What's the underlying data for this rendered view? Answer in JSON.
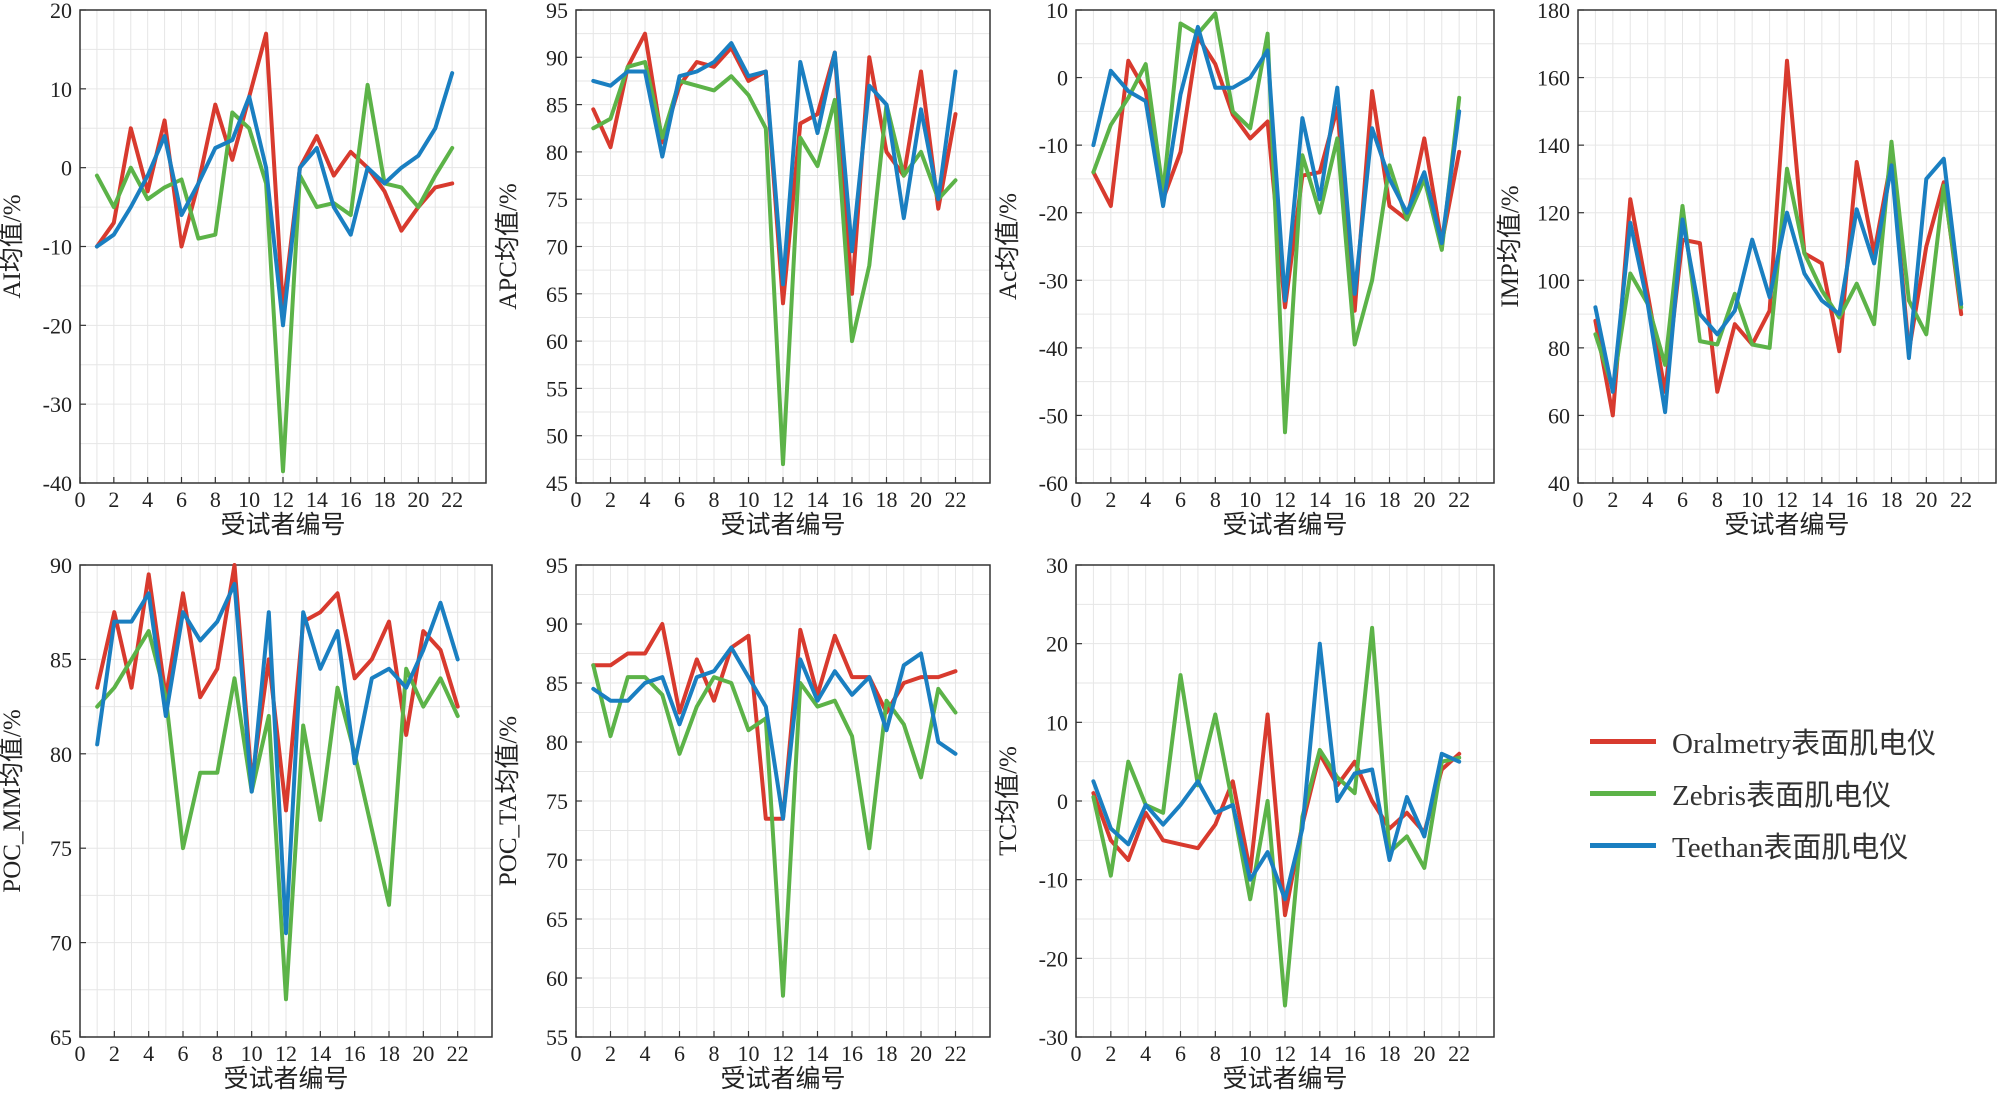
{
  "chart_data": [
    {
      "type": "line",
      "xlabel": "受试者编号",
      "ylabel": "AI均值/%",
      "x": [
        1,
        2,
        3,
        4,
        5,
        6,
        7,
        8,
        9,
        10,
        11,
        12,
        13,
        14,
        15,
        16,
        17,
        18,
        19,
        20,
        21,
        22
      ],
      "xticks": [
        0,
        2,
        4,
        6,
        8,
        10,
        12,
        14,
        16,
        18,
        20,
        22
      ],
      "xlim": [
        0,
        24
      ],
      "ylim": [
        -40,
        20
      ],
      "yticks": [
        -40,
        -30,
        -20,
        -10,
        0,
        10,
        20
      ],
      "grid": true,
      "series": [
        {
          "name": "Oralmetry表面肌电仪",
          "values": [
            -10,
            -7,
            5,
            -3,
            6,
            -10,
            -2,
            8,
            1,
            9,
            17,
            -18,
            0,
            4,
            -1,
            2,
            0,
            -3,
            -8,
            -5,
            -2.5,
            -2
          ]
        },
        {
          "name": "Zebris表面肌电仪",
          "values": [
            -1,
            -5,
            0,
            -4,
            -2.5,
            -1.5,
            -9,
            -8.5,
            7,
            5,
            -2,
            -38.5,
            -1,
            -5,
            -4.5,
            -6,
            10.5,
            -2,
            -2.5,
            -5,
            -1,
            2.5
          ]
        },
        {
          "name": "Teethan表面肌电仪",
          "values": [
            -10,
            -8.5,
            -5,
            -1,
            4,
            -6,
            -2,
            2.5,
            3.5,
            9,
            0,
            -20,
            0,
            2.5,
            -5,
            -8.5,
            0,
            -2,
            0,
            1.5,
            5,
            12
          ]
        }
      ]
    },
    {
      "type": "line",
      "xlabel": "受试者编号",
      "ylabel": "APC均值/%",
      "x": [
        1,
        2,
        3,
        4,
        5,
        6,
        7,
        8,
        9,
        10,
        11,
        12,
        13,
        14,
        15,
        16,
        17,
        18,
        19,
        20,
        21,
        22
      ],
      "xticks": [
        0,
        2,
        4,
        6,
        8,
        10,
        12,
        14,
        16,
        18,
        20,
        22
      ],
      "xlim": [
        0,
        24
      ],
      "ylim": [
        45,
        95
      ],
      "yticks": [
        45,
        50,
        55,
        60,
        65,
        70,
        75,
        80,
        85,
        90,
        95
      ],
      "grid": true,
      "series": [
        {
          "name": "Oralmetry表面肌电仪",
          "values": [
            84.5,
            80.5,
            89,
            92.5,
            81,
            87,
            89.5,
            89,
            91,
            87.5,
            88.5,
            64,
            83,
            84,
            90.5,
            65,
            90,
            80,
            77.5,
            88.5,
            74,
            84
          ]
        },
        {
          "name": "Zebris表面肌电仪",
          "values": [
            82.5,
            83.5,
            89,
            89.5,
            81.5,
            87.5,
            87,
            86.5,
            88,
            86,
            82.5,
            47,
            81.5,
            78.5,
            85.5,
            60,
            68,
            85,
            77.5,
            80,
            75,
            77
          ]
        },
        {
          "name": "Teethan表面肌电仪",
          "values": [
            87.5,
            87,
            88.5,
            88.5,
            79.5,
            88,
            88.5,
            89.5,
            91.5,
            88,
            88.5,
            66,
            89.5,
            82,
            90.5,
            69.5,
            87,
            85,
            73,
            84.5,
            75,
            88.5
          ]
        }
      ]
    },
    {
      "type": "line",
      "xlabel": "受试者编号",
      "ylabel": "Ac均值/%",
      "x": [
        1,
        2,
        3,
        4,
        5,
        6,
        7,
        8,
        9,
        10,
        11,
        12,
        13,
        14,
        15,
        16,
        17,
        18,
        19,
        20,
        21,
        22
      ],
      "xticks": [
        0,
        2,
        4,
        6,
        8,
        10,
        12,
        14,
        16,
        18,
        20,
        22
      ],
      "xlim": [
        0,
        24
      ],
      "ylim": [
        -60,
        10
      ],
      "yticks": [
        -60,
        -50,
        -40,
        -30,
        -20,
        -10,
        0,
        10
      ],
      "grid": true,
      "series": [
        {
          "name": "Oralmetry表面肌电仪",
          "values": [
            -14,
            -19,
            2.5,
            -2,
            -18,
            -11,
            6,
            2,
            -5.5,
            -9,
            -6.5,
            -34,
            -14.5,
            -14,
            -4.5,
            -34.5,
            -2,
            -19,
            -21,
            -9,
            -24.5,
            -11
          ]
        },
        {
          "name": "Zebris表面肌电仪",
          "values": [
            -14,
            -7,
            -3,
            2,
            -17,
            8,
            6.5,
            9.5,
            -5,
            -7.5,
            6.5,
            -52.5,
            -11.5,
            -20,
            -9,
            -39.5,
            -30,
            -13,
            -21,
            -15,
            -25.5,
            -3
          ]
        },
        {
          "name": "Teethan表面肌电仪",
          "values": [
            -10,
            1,
            -2,
            -3.5,
            -19,
            -2.5,
            7.5,
            -1.5,
            -1.5,
            0,
            4,
            -33,
            -6,
            -18,
            -1.5,
            -32,
            -7.5,
            -15,
            -20,
            -14,
            -24.5,
            -5
          ]
        }
      ]
    },
    {
      "type": "line",
      "xlabel": "受试者编号",
      "ylabel": "IMP均值/%",
      "x": [
        1,
        2,
        3,
        4,
        5,
        6,
        7,
        8,
        9,
        10,
        11,
        12,
        13,
        14,
        15,
        16,
        17,
        18,
        19,
        20,
        21,
        22
      ],
      "xticks": [
        0,
        2,
        4,
        6,
        8,
        10,
        12,
        14,
        16,
        18,
        20,
        22
      ],
      "xlim": [
        0,
        24
      ],
      "ylim": [
        40,
        180
      ],
      "yticks": [
        40,
        60,
        80,
        100,
        120,
        140,
        160,
        180
      ],
      "grid": true,
      "series": [
        {
          "name": "Oralmetry表面肌电仪",
          "values": [
            88,
            60,
            124,
            96,
            67,
            112,
            111,
            67,
            87,
            81,
            91,
            165,
            108,
            105,
            79,
            135,
            108,
            136,
            79,
            110,
            129,
            90
          ]
        },
        {
          "name": "Zebris表面肌电仪",
          "values": [
            84,
            68,
            102,
            93,
            75,
            122,
            82,
            81,
            96,
            81,
            80,
            133,
            108,
            97,
            89,
            99,
            87,
            141,
            94,
            84,
            128,
            92
          ]
        },
        {
          "name": "Teethan表面肌电仪",
          "values": [
            92,
            67,
            117,
            93,
            61,
            118,
            90,
            84,
            91,
            112,
            95,
            120,
            102,
            94,
            90,
            121,
            105,
            134,
            77,
            130,
            136,
            93
          ]
        }
      ]
    },
    {
      "type": "line",
      "xlabel": "受试者编号",
      "ylabel": "POC_MM均值/%",
      "x": [
        1,
        2,
        3,
        4,
        5,
        6,
        7,
        8,
        9,
        10,
        11,
        12,
        13,
        14,
        15,
        16,
        17,
        18,
        19,
        20,
        21,
        22
      ],
      "xticks": [
        0,
        2,
        4,
        6,
        8,
        10,
        12,
        14,
        16,
        18,
        20,
        22
      ],
      "xlim": [
        0,
        24
      ],
      "ylim": [
        65,
        90
      ],
      "yticks": [
        65,
        70,
        75,
        80,
        85,
        90
      ],
      "grid": true,
      "series": [
        {
          "name": "Oralmetry表面肌电仪",
          "values": [
            83.5,
            87.5,
            83.5,
            89.5,
            83,
            88.5,
            83,
            84.5,
            90,
            78.5,
            85,
            77,
            87,
            87.5,
            88.5,
            84,
            85,
            87,
            81,
            86.5,
            85.5,
            82.5
          ]
        },
        {
          "name": "Zebris表面肌电仪",
          "values": [
            82.5,
            83.5,
            85,
            86.5,
            83,
            75,
            79,
            79,
            84,
            78,
            82,
            67,
            81.5,
            76.5,
            83.5,
            80,
            76,
            72,
            84.5,
            82.5,
            84,
            82
          ]
        },
        {
          "name": "Teethan表面肌电仪",
          "values": [
            80.5,
            87,
            87,
            88.5,
            82,
            87.5,
            86,
            87,
            89,
            78,
            87.5,
            70.5,
            87.5,
            84.5,
            86.5,
            79.5,
            84,
            84.5,
            83.5,
            85.5,
            88,
            85
          ]
        }
      ]
    },
    {
      "type": "line",
      "xlabel": "受试者编号",
      "ylabel": "POC_TA均值/%",
      "x": [
        1,
        2,
        3,
        4,
        5,
        6,
        7,
        8,
        9,
        10,
        11,
        12,
        13,
        14,
        15,
        16,
        17,
        18,
        19,
        20,
        21,
        22
      ],
      "xticks": [
        0,
        2,
        4,
        6,
        8,
        10,
        12,
        14,
        16,
        18,
        20,
        22
      ],
      "xlim": [
        0,
        24
      ],
      "ylim": [
        55,
        95
      ],
      "yticks": [
        55,
        60,
        65,
        70,
        75,
        80,
        85,
        90,
        95
      ],
      "grid": true,
      "series": [
        {
          "name": "Oralmetry表面肌电仪",
          "values": [
            86.5,
            86.5,
            87.5,
            87.5,
            90,
            82.5,
            87,
            83.5,
            88,
            89,
            73.5,
            73.5,
            89.5,
            84,
            89,
            85.5,
            85.5,
            82.5,
            85,
            85.5,
            85.5,
            86
          ]
        },
        {
          "name": "Zebris表面肌电仪",
          "values": [
            86.5,
            80.5,
            85.5,
            85.5,
            84,
            79,
            83,
            85.5,
            85,
            81,
            82,
            58.5,
            85,
            83,
            83.5,
            80.5,
            71,
            83.5,
            81.5,
            77,
            84.5,
            82.5
          ]
        },
        {
          "name": "Teethan表面肌电仪",
          "values": [
            84.5,
            83.5,
            83.5,
            85,
            85.5,
            81.5,
            85.5,
            86,
            88,
            85.5,
            83,
            73.5,
            87,
            83.5,
            86,
            84,
            85.5,
            81,
            86.5,
            87.5,
            80,
            79
          ]
        }
      ]
    },
    {
      "type": "line",
      "xlabel": "受试者编号",
      "ylabel": "TC均值/%",
      "x": [
        1,
        2,
        3,
        4,
        5,
        6,
        7,
        8,
        9,
        10,
        11,
        12,
        13,
        14,
        15,
        16,
        17,
        18,
        19,
        20,
        21,
        22
      ],
      "xticks": [
        0,
        2,
        4,
        6,
        8,
        10,
        12,
        14,
        16,
        18,
        20,
        22
      ],
      "xlim": [
        0,
        24
      ],
      "ylim": [
        -30,
        30
      ],
      "yticks": [
        -30,
        -20,
        -10,
        0,
        10,
        20,
        30
      ],
      "grid": true,
      "series": [
        {
          "name": "Oralmetry表面肌电仪",
          "values": [
            1,
            -5,
            -7.5,
            -1.5,
            -5,
            -5.5,
            -6,
            -3,
            2.5,
            -9,
            11,
            -14.5,
            -3,
            6,
            2,
            5,
            0,
            -3.5,
            -1.5,
            -4,
            4,
            6
          ]
        },
        {
          "name": "Zebris表面肌电仪",
          "values": [
            0.5,
            -9.5,
            5,
            -0.5,
            -1.5,
            16,
            2,
            11,
            -0.5,
            -12.5,
            0,
            -26,
            -2,
            6.5,
            3,
            1,
            22,
            -6.5,
            -4.5,
            -8.5,
            5,
            5.5
          ]
        },
        {
          "name": "Teethan表面肌电仪",
          "values": [
            2.5,
            -3.5,
            -5.5,
            -0.5,
            -3,
            -0.5,
            2.5,
            -1.5,
            -0.5,
            -10,
            -6.5,
            -12.5,
            -3.5,
            20,
            0,
            3.5,
            4,
            -7.5,
            0.5,
            -4.5,
            6,
            5
          ]
        }
      ]
    }
  ],
  "legend": {
    "position": "right",
    "items": [
      {
        "label": "Oralmetry表面肌电仪",
        "color": "#d83a2e"
      },
      {
        "label": "Zebris表面肌电仪",
        "color": "#5cb348"
      },
      {
        "label": "Teethan表面肌电仪",
        "color": "#1a7fc1"
      }
    ]
  }
}
